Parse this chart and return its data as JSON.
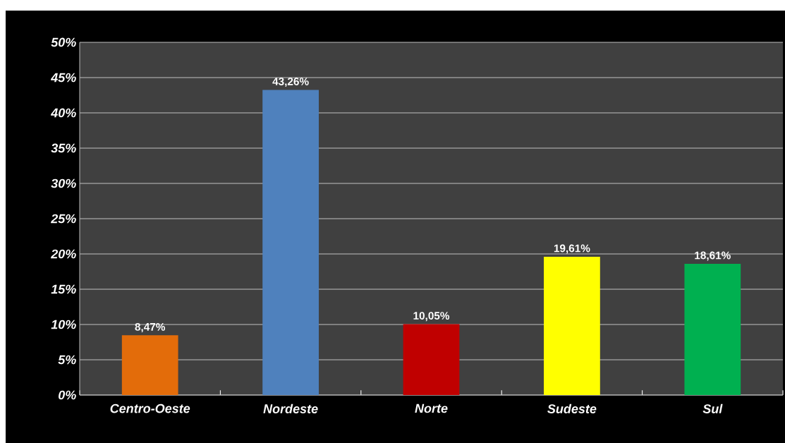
{
  "chart_data": {
    "type": "bar",
    "categories": [
      "Centro-Oeste",
      "Nordeste",
      "Norte",
      "Sudeste",
      "Sul"
    ],
    "values": [
      8.47,
      43.26,
      10.05,
      19.61,
      18.61
    ],
    "colors": [
      "#e36c0a",
      "#4f81bd",
      "#c00000",
      "#ffff00",
      "#00b050"
    ],
    "value_labels": [
      "8,47%",
      "43,26%",
      "10,05%",
      "19,61%",
      "18,61%"
    ],
    "ylim": [
      0,
      50
    ],
    "yticks": [
      {
        "value": 0,
        "label": "0%"
      },
      {
        "value": 5,
        "label": "5%"
      },
      {
        "value": 10,
        "label": "10%"
      },
      {
        "value": 15,
        "label": "15%"
      },
      {
        "value": 20,
        "label": "20%"
      },
      {
        "value": 25,
        "label": "25%"
      },
      {
        "value": 30,
        "label": "30%"
      },
      {
        "value": 35,
        "label": "35%"
      },
      {
        "value": 40,
        "label": "40%"
      },
      {
        "value": 45,
        "label": "45%"
      },
      {
        "value": 50,
        "label": "50%"
      }
    ],
    "grid": "y"
  }
}
